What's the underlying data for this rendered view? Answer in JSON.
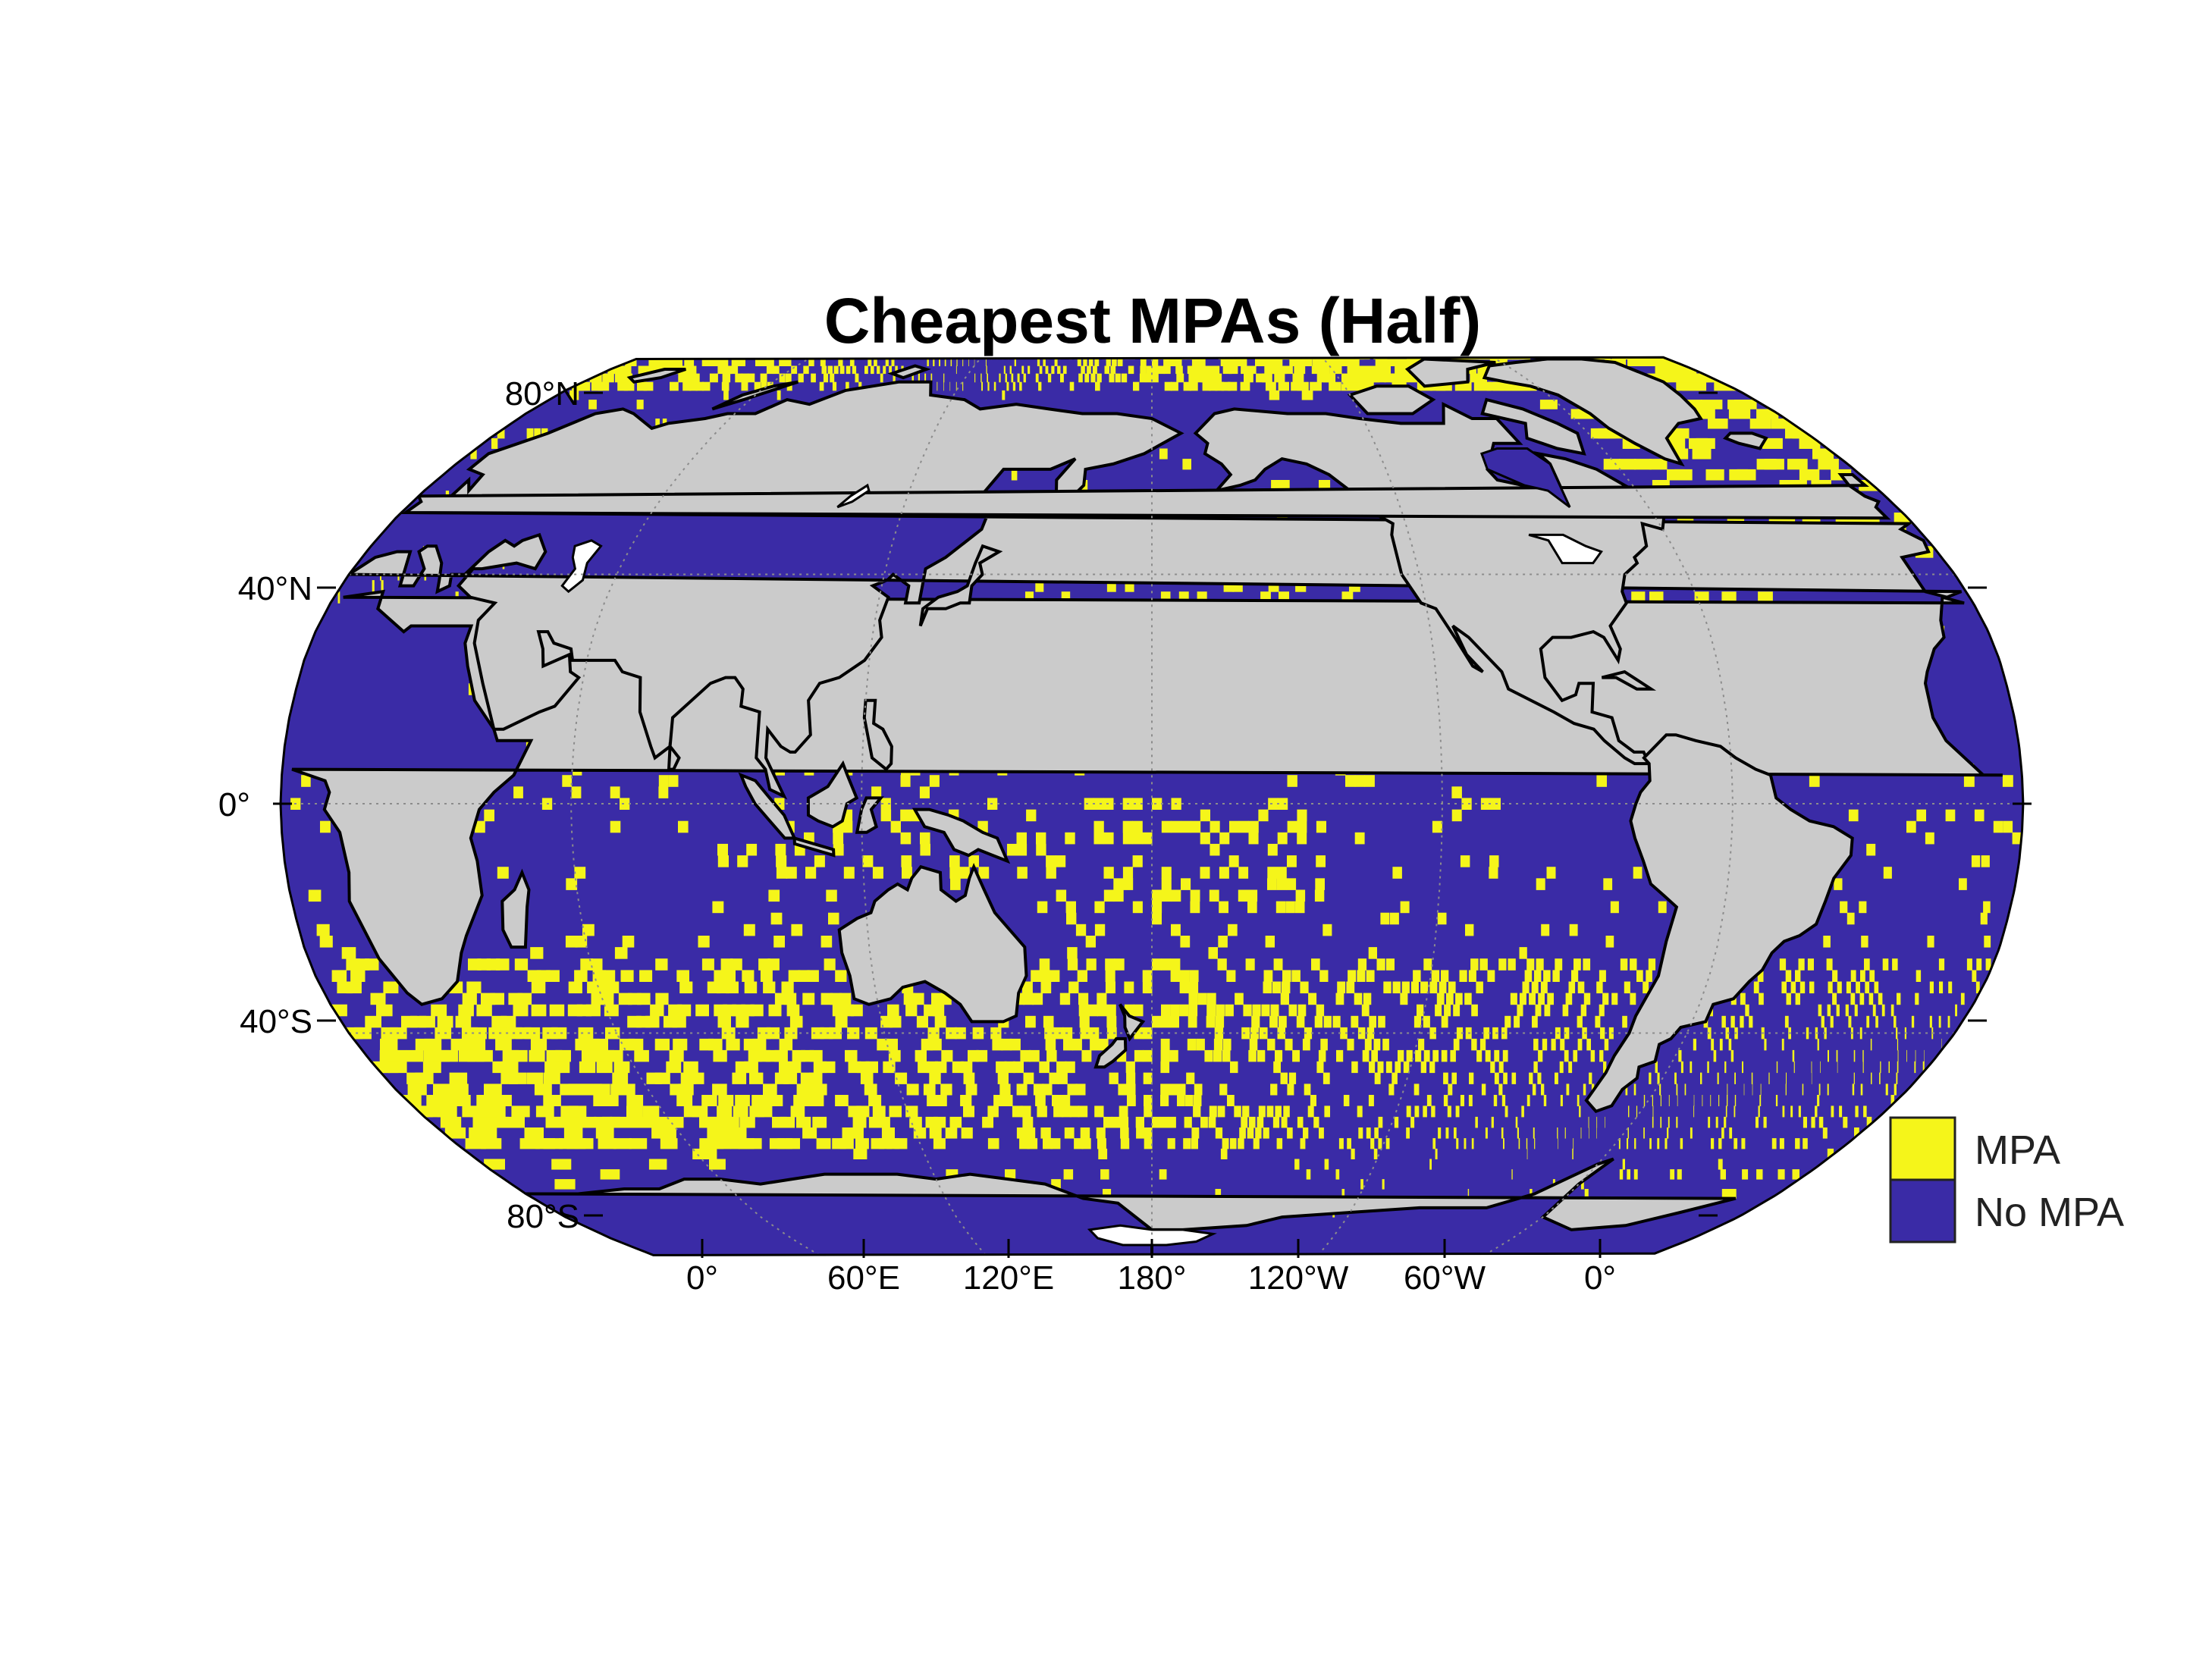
{
  "map": {
    "title": "Cheapest MPAs (Half)",
    "projection": "Robinson",
    "central_meridian": "180°",
    "colors": {
      "mpa": "#f5f51a",
      "no_mpa": "#3a2ba6",
      "land": "#cbcbcb",
      "ice": "#ffffff",
      "background": "#ffffff"
    },
    "lat_labels": [
      "80°N",
      "40°N",
      "0°",
      "40°S",
      "80°S"
    ],
    "lon_labels": [
      "0°",
      "60°E",
      "120°E",
      "180°",
      "120°W",
      "60°W",
      "0°"
    ],
    "legend": {
      "items": [
        {
          "label": "MPA",
          "color": "#f5f51a"
        },
        {
          "label": "No MPA",
          "color": "#3a2ba6"
        }
      ]
    }
  }
}
